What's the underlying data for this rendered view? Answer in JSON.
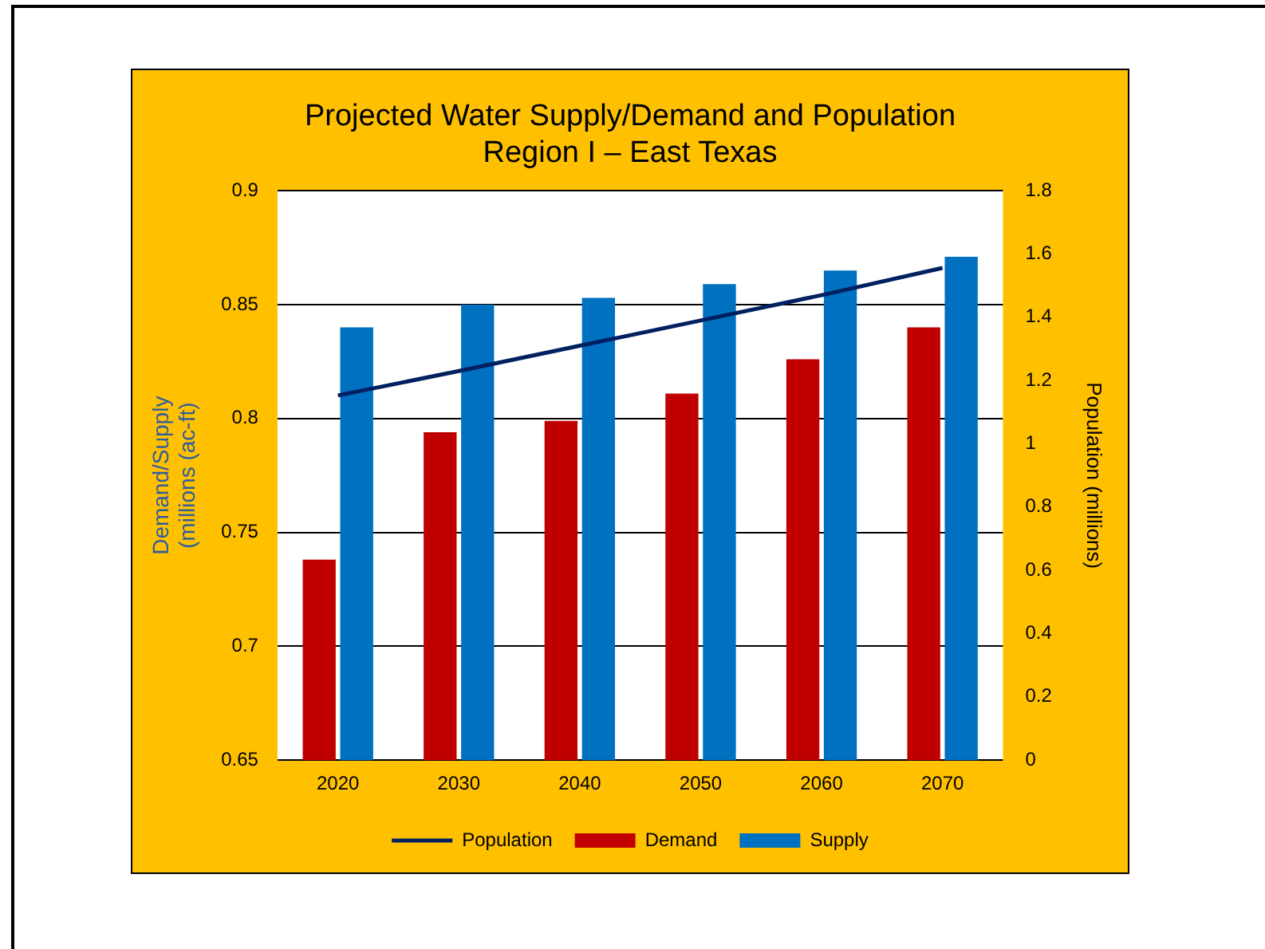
{
  "chart_data": {
    "type": "bar",
    "title": "Projected Water Supply/Demand and Population\nRegion I – East Texas",
    "ylabel": "Demand/Supply\n(millions (ac-ft)",
    "y2label": "Population (millions)",
    "categories": [
      "2020",
      "2030",
      "2040",
      "2050",
      "2060",
      "2070"
    ],
    "series": [
      {
        "name": "Demand",
        "color": "#c00000",
        "values": [
          0.738,
          0.794,
          0.799,
          0.811,
          0.826,
          0.84
        ]
      },
      {
        "name": "Supply",
        "color": "#0070c0",
        "values": [
          0.84,
          0.85,
          0.853,
          0.859,
          0.865,
          0.871
        ]
      },
      {
        "name": "Population",
        "type": "line",
        "axis": "y2",
        "color": "#002060",
        "values": [
          1.153,
          1.23,
          1.31,
          1.39,
          1.47,
          1.556
        ]
      }
    ],
    "ylim": [
      0.65,
      0.9
    ],
    "yticks": [
      0.65,
      0.7,
      0.75,
      0.8,
      0.85,
      0.9
    ],
    "y2lim": [
      0,
      1.8
    ],
    "y2ticks": [
      0,
      0.2,
      0.4,
      0.6,
      0.8,
      1,
      1.2,
      1.4,
      1.6,
      1.8
    ],
    "grid": "y",
    "legend": "bottom"
  }
}
